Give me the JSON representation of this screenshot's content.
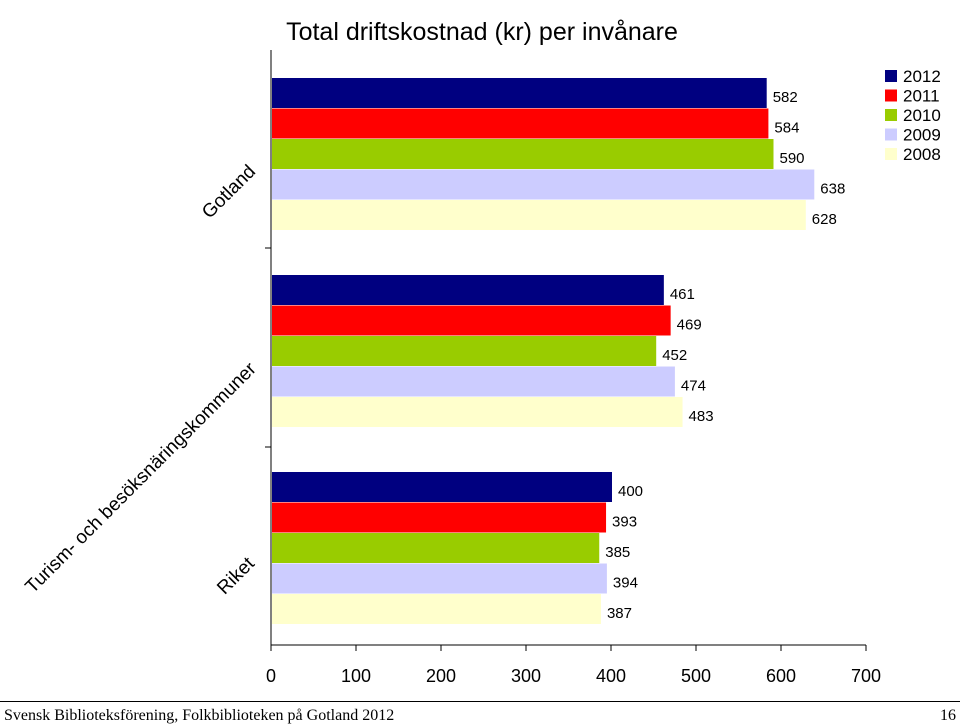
{
  "chart_data": {
    "type": "bar",
    "orientation": "horizontal",
    "title": "Total driftskostnad (kr) per invånare",
    "categories": [
      "Gotland",
      "Turism- och besöksnäringskommuner",
      "Riket"
    ],
    "series": [
      {
        "name": "2012",
        "color": "#000080",
        "values": [
          582,
          461,
          400
        ]
      },
      {
        "name": "2011",
        "color": "#ff0000",
        "values": [
          584,
          469,
          393
        ]
      },
      {
        "name": "2010",
        "color": "#99cc00",
        "values": [
          590,
          452,
          385
        ]
      },
      {
        "name": "2009",
        "color": "#ccccff",
        "values": [
          638,
          474,
          394
        ]
      },
      {
        "name": "2008",
        "color": "#ffffcc",
        "values": [
          628,
          483,
          387
        ]
      }
    ],
    "xlim": [
      0,
      700
    ],
    "xticks": [
      0,
      100,
      200,
      300,
      400,
      500,
      600,
      700
    ],
    "grid": false,
    "legend": "top-right"
  },
  "footer": {
    "left": "Svensk Biblioteksförening, Folkbiblioteken på Gotland 2012",
    "right": "16"
  }
}
